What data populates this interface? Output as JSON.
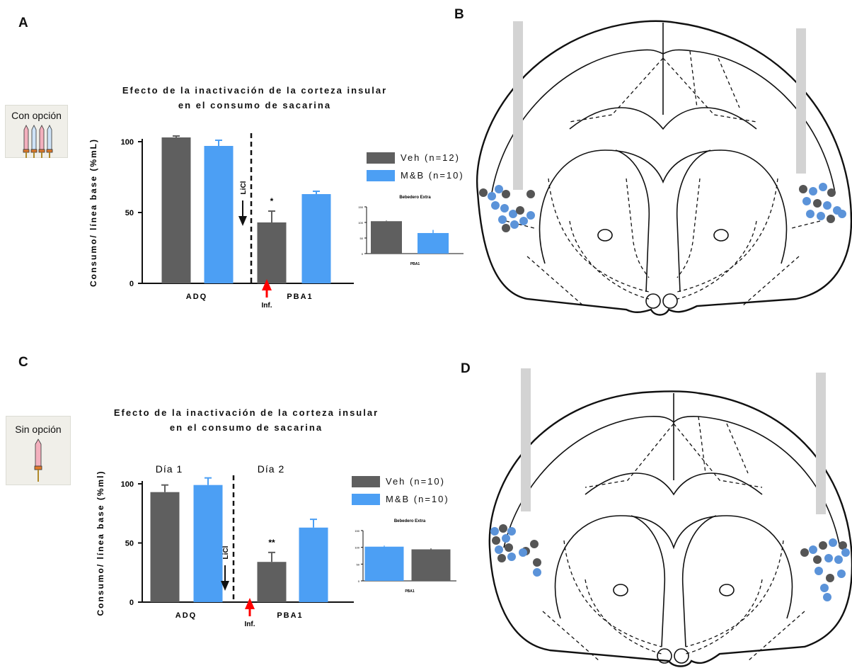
{
  "colors": {
    "veh": "#5f5f5f",
    "mb": "#4c9ff4",
    "arrow_red": "#ff0000",
    "probe": "#d3d3d3",
    "dot_blue": "#5b93d9",
    "dot_gray": "#555555"
  },
  "panels": {
    "A": {
      "letter": "A",
      "icon_label": "Con opción",
      "title_line1": "Efecto de la inactivación de la corteza insular",
      "title_line2": "en el consumo de sacarina",
      "legend": [
        "Veh (n=12)",
        "M&B (n=10)"
      ]
    },
    "B": {
      "letter": "B"
    },
    "C": {
      "letter": "C",
      "icon_label": "Sin opción",
      "title_line1": "Efecto de la inactivación de la corteza insular",
      "title_line2": "en el consumo de sacarina",
      "legend": [
        "Veh (n=10)",
        "M&B (n=10)"
      ]
    },
    "D": {
      "letter": "D"
    }
  },
  "chart_data": [
    {
      "id": "A-main",
      "type": "bar",
      "title": "Efecto de la inactivación de la corteza insular en el consumo de sacarina",
      "ylabel": "Consumo/ línea base (%mL)",
      "ylim": [
        0,
        100
      ],
      "yticks": [
        0,
        50,
        100
      ],
      "categories": [
        "ADQ",
        "PBA1"
      ],
      "series": [
        {
          "name": "Veh (n=12)",
          "values": [
            103,
            43
          ],
          "errors": [
            1,
            8
          ]
        },
        {
          "name": "M&B (n=10)",
          "values": [
            97,
            63
          ],
          "errors": [
            4,
            2
          ]
        }
      ],
      "annotations": {
        "significance": [
          "",
          "*"
        ],
        "divider_label": "LiCl",
        "infusion_label": "Inf."
      }
    },
    {
      "id": "A-inset",
      "type": "bar",
      "title": "Bebedero Extra",
      "xlabel": "PBA1",
      "ylim": [
        0,
        150
      ],
      "yticks": [
        0,
        50,
        100,
        150
      ],
      "categories": [
        "Veh",
        "M&B"
      ],
      "values": [
        104,
        66
      ],
      "errors": [
        2,
        10
      ]
    },
    {
      "id": "C-main",
      "type": "bar",
      "title": "Efecto de la inactivación de la corteza insular en el consumo de sacarina",
      "ylabel": "Consumo/ línea base (%ml)",
      "ylim": [
        0,
        100
      ],
      "yticks": [
        0,
        50,
        100
      ],
      "categories": [
        "ADQ",
        "PBA1"
      ],
      "group_labels": [
        "Día 1",
        "Día 2"
      ],
      "series": [
        {
          "name": "Veh (n=10)",
          "values": [
            93,
            34
          ],
          "errors": [
            6,
            8
          ]
        },
        {
          "name": "M&B (n=10)",
          "values": [
            99,
            63
          ],
          "errors": [
            6,
            7
          ]
        }
      ],
      "annotations": {
        "significance": [
          "",
          "**"
        ],
        "divider_label": "LiCl",
        "infusion_label": "Inf."
      }
    },
    {
      "id": "C-inset",
      "type": "bar",
      "title": "Bebedero Extra",
      "xlabel": "PBA1",
      "ylim": [
        0,
        150
      ],
      "yticks": [
        0,
        50,
        100,
        150
      ],
      "categories": [
        "M&B",
        "Veh"
      ],
      "values": [
        102,
        94
      ],
      "errors": [
        3,
        3
      ]
    }
  ]
}
